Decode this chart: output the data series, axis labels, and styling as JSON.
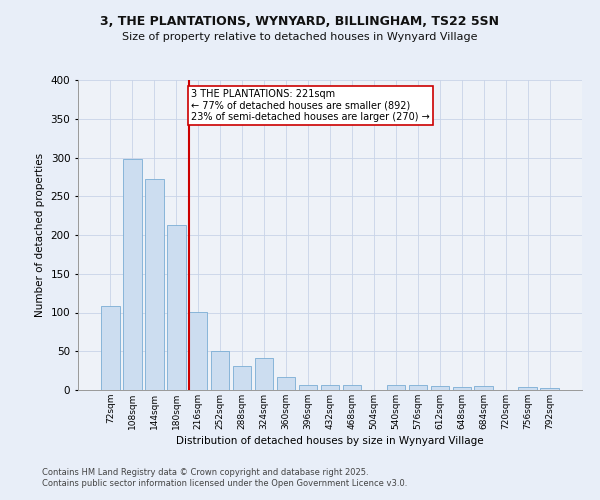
{
  "title1": "3, THE PLANTATIONS, WYNYARD, BILLINGHAM, TS22 5SN",
  "title2": "Size of property relative to detached houses in Wynyard Village",
  "xlabel": "Distribution of detached houses by size in Wynyard Village",
  "ylabel": "Number of detached properties",
  "footer1": "Contains HM Land Registry data © Crown copyright and database right 2025.",
  "footer2": "Contains public sector information licensed under the Open Government Licence v3.0.",
  "categories": [
    "72sqm",
    "108sqm",
    "144sqm",
    "180sqm",
    "216sqm",
    "252sqm",
    "288sqm",
    "324sqm",
    "360sqm",
    "396sqm",
    "432sqm",
    "468sqm",
    "504sqm",
    "540sqm",
    "576sqm",
    "612sqm",
    "648sqm",
    "684sqm",
    "720sqm",
    "756sqm",
    "792sqm"
  ],
  "values": [
    109,
    298,
    272,
    213,
    101,
    50,
    31,
    41,
    17,
    6,
    6,
    6,
    0,
    6,
    7,
    5,
    4,
    5,
    0,
    4,
    3
  ],
  "bar_color": "#ccddf0",
  "bar_edge_color": "#7aadd4",
  "highlight_index": 4,
  "highlight_color": "#cc0000",
  "annotation_text": "3 THE PLANTATIONS: 221sqm\n← 77% of detached houses are smaller (892)\n23% of semi-detached houses are larger (270) →",
  "annotation_box_color": "#ffffff",
  "annotation_box_edge": "#cc0000",
  "grid_color": "#c8d4e8",
  "bg_color": "#e8eef8",
  "plot_bg_color": "#eef2f8",
  "ylim": [
    0,
    400
  ],
  "yticks": [
    0,
    50,
    100,
    150,
    200,
    250,
    300,
    350,
    400
  ]
}
